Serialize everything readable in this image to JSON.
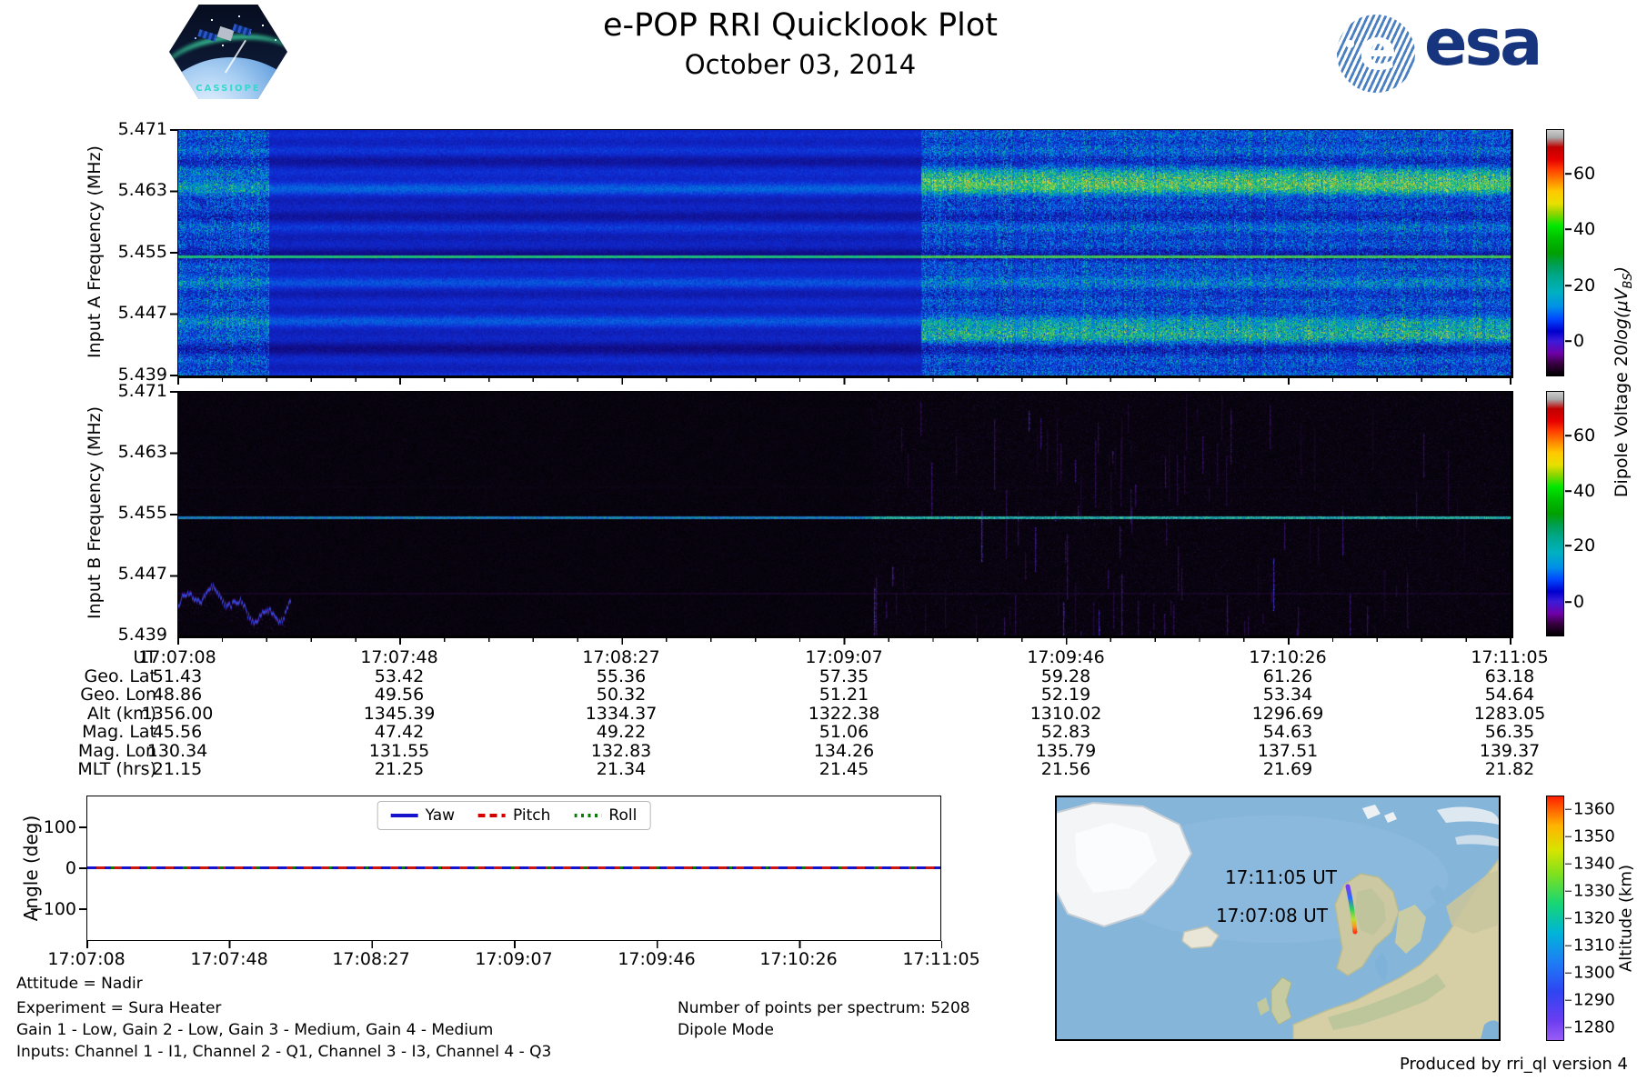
{
  "header": {
    "title": "e-POP RRI Quicklook Plot",
    "subtitle": "October 03, 2014"
  },
  "logos": {
    "cassiope_text": "CASSIOPE",
    "esa_text": "esa",
    "esa_e": "e",
    "esa_brand_color": "#16357e"
  },
  "panels": {
    "input_a": {
      "ylabel": "Input A Frequency (MHz)"
    },
    "input_b": {
      "ylabel": "Input B Frequency (MHz)"
    },
    "freq_ticks": [
      "5.471",
      "5.463",
      "5.455",
      "5.447",
      "5.439"
    ],
    "colorbar": {
      "ticks": [
        "60",
        "40",
        "20",
        "0"
      ],
      "label_prefix": "Dipole Voltage 20",
      "label_math": "log(μV",
      "label_sub": "BS",
      "label_suffix": ")"
    }
  },
  "ephemeris_table": {
    "row_labels": [
      "UT",
      "Geo. Lat",
      "Geo. Lon",
      "Alt (km)",
      "Mag. Lat",
      "Mag. Lon",
      "MLT (hrs)"
    ],
    "columns": [
      [
        "17:07:08",
        "51.43",
        "48.86",
        "1356.00",
        "45.56",
        "130.34",
        "21.15"
      ],
      [
        "17:07:48",
        "53.42",
        "49.56",
        "1345.39",
        "47.42",
        "131.55",
        "21.25"
      ],
      [
        "17:08:27",
        "55.36",
        "50.32",
        "1334.37",
        "49.22",
        "132.83",
        "21.34"
      ],
      [
        "17:09:07",
        "57.35",
        "51.21",
        "1322.38",
        "51.06",
        "134.26",
        "21.45"
      ],
      [
        "17:09:46",
        "59.28",
        "52.19",
        "1310.02",
        "52.83",
        "135.79",
        "21.56"
      ],
      [
        "17:10:26",
        "61.26",
        "53.34",
        "1296.69",
        "54.63",
        "137.51",
        "21.69"
      ],
      [
        "17:11:05",
        "63.18",
        "54.64",
        "1283.05",
        "56.35",
        "139.37",
        "21.82"
      ]
    ]
  },
  "angle_plot": {
    "ylabel": "Angle (deg)",
    "yticks": [
      "100",
      "0",
      "−100"
    ],
    "xticks": [
      "17:07:08",
      "17:07:48",
      "17:08:27",
      "17:09:07",
      "17:09:46",
      "17:10:26",
      "17:11:05"
    ],
    "legend": [
      {
        "label": "Yaw",
        "color": "#1414cc",
        "style": "solid"
      },
      {
        "label": "Pitch",
        "color": "#d40000",
        "style": "dashed"
      },
      {
        "label": "Roll",
        "color": "#0a7a0a",
        "style": "dotted"
      }
    ]
  },
  "map": {
    "labels": [
      "17:11:05 UT",
      "17:07:08 UT"
    ],
    "altitude_label": "Altitude (km)",
    "altitude_ticks": [
      "1360",
      "1350",
      "1340",
      "1330",
      "1320",
      "1310",
      "1300",
      "1290",
      "1280"
    ]
  },
  "footer": {
    "left_lines": [
      "Attitude = Nadir",
      "Experiment = Sura Heater",
      "Gain 1 - Low, Gain 2 - Low, Gain 3 - Medium, Gain 4 - Medium",
      "Inputs: Channel 1 - I1, Channel 2 - Q1, Channel 3 - I3, Channel 4 - Q3"
    ],
    "center_lines": [
      "Number of points per spectrum: 5208",
      "Dipole Mode"
    ],
    "credit": "Produced by rri_ql version 4"
  },
  "chart_data": [
    {
      "id": "input_a_spectrogram",
      "type": "heatmap",
      "ylabel": "Input A Frequency (MHz)",
      "y_range_mhz": [
        5.439,
        5.471
      ],
      "yticks_mhz": [
        5.471,
        5.463,
        5.455,
        5.447,
        5.439
      ],
      "x_range_ut": [
        "17:07:08",
        "17:11:05"
      ],
      "colorbar": {
        "label": "Dipole Voltage 20log(μV_BS)",
        "ticks": [
          0,
          20,
          40,
          60
        ],
        "range": [
          -12,
          76
        ],
        "colormap": "nipy_spectral"
      },
      "features": {
        "description": "broadband blue noise floor ~5-15 dB with persistent narrow carrier line, brighter enhanced sidebands in final segment",
        "carrier_line_mhz": 5.4545,
        "enhanced_bands_mhz": [
          5.4645,
          5.4445
        ],
        "regimes_frac": [
          0.068,
          0.557
        ],
        "regime_description": [
          "noisy start segment",
          "smooth dark banded segment",
          "noisy segment with enhanced cyan sidebands"
        ]
      }
    },
    {
      "id": "input_b_spectrogram",
      "type": "heatmap",
      "ylabel": "Input B Frequency (MHz)",
      "y_range_mhz": [
        5.439,
        5.471
      ],
      "yticks_mhz": [
        5.471,
        5.463,
        5.455,
        5.447,
        5.439
      ],
      "x_range_ut": [
        "17:07:08",
        "17:11:05"
      ],
      "colorbar": {
        "label": "Dipole Voltage 20log(μV_BS)",
        "ticks": [
          0,
          20,
          40,
          60
        ],
        "range": [
          -12,
          76
        ],
        "colormap": "nipy_spectral"
      },
      "features": {
        "description": "near-black noise floor; teal carrier line across full width; blue noisy wisp near 5.443 MHz at start; faint purple vertical streaks after mid-pass",
        "carrier_line_mhz": 5.4545,
        "squiggle_band_mhz": 5.443,
        "active_after_frac": 0.52
      }
    },
    {
      "id": "attitude_angles",
      "type": "line",
      "ylabel": "Angle (deg)",
      "ylim": [
        -180,
        180
      ],
      "yticks": [
        100,
        0,
        -100
      ],
      "x_ticks_ut": [
        "17:07:08",
        "17:07:48",
        "17:08:27",
        "17:09:07",
        "17:09:46",
        "17:10:26",
        "17:11:05"
      ],
      "series": [
        {
          "name": "Yaw",
          "style": "solid",
          "color": "#1414cc",
          "values_deg": [
            0,
            0,
            0,
            0,
            0,
            0,
            0
          ]
        },
        {
          "name": "Pitch",
          "style": "dashed",
          "color": "#d40000",
          "values_deg": [
            0,
            0,
            0,
            0,
            0,
            0,
            0
          ]
        },
        {
          "name": "Roll",
          "style": "dotted",
          "color": "#0a7a0a",
          "values_deg": [
            0,
            0,
            0,
            0,
            0,
            0,
            0
          ]
        }
      ],
      "legend_position": "upper center"
    },
    {
      "id": "ground_track_map",
      "type": "line",
      "title": "satellite ground track over Europe",
      "annotations": [
        "17:11:05 UT",
        "17:07:08 UT"
      ],
      "colorbar": {
        "label": "Altitude (km)",
        "ticks": [
          1360,
          1350,
          1340,
          1330,
          1320,
          1310,
          1300,
          1290,
          1280
        ],
        "range": [
          1275,
          1365
        ],
        "colormap": "rainbow"
      },
      "track": [
        {
          "ut": "17:07:08",
          "lat": 51.43,
          "lon": 48.86,
          "alt_km": 1356.0
        },
        {
          "ut": "17:11:05",
          "lat": 63.18,
          "lon": 54.64,
          "alt_km": 1283.05
        }
      ]
    }
  ]
}
